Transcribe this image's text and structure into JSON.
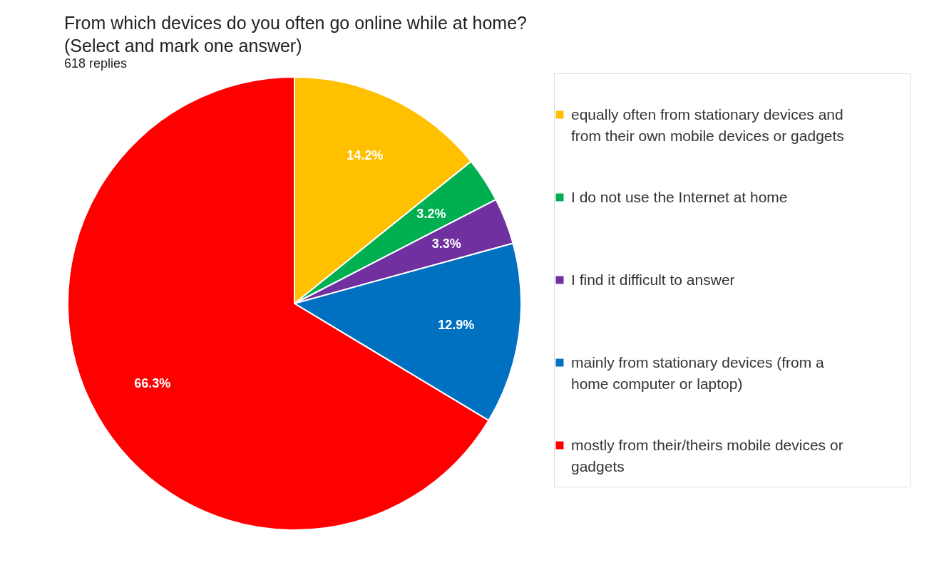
{
  "chart_data": {
    "type": "pie",
    "title": "From which devices do you often go online while at home? (Select and mark one answer)",
    "subtitle": "618 replies",
    "categories": [
      "equally often from stationary devices and from their own mobile devices or gadgets",
      "I do not use the Internet at home",
      "I find it difficult to answer",
      "mainly from stationary devices (from a home computer or laptop)",
      "mostly from their/theirs mobile devices or gadgets"
    ],
    "values": [
      14.2,
      3.2,
      3.3,
      12.9,
      66.3
    ],
    "value_labels": [
      "14.2%",
      "3.2%",
      "3.3%",
      "12.9%",
      "66.3%"
    ],
    "colors": [
      "#ffc000",
      "#00b050",
      "#7030a0",
      "#0070c0",
      "#ff0000"
    ],
    "legend": "right"
  }
}
